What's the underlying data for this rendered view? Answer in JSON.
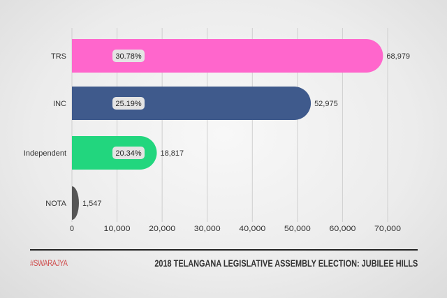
{
  "chart_data": {
    "type": "bar",
    "orientation": "horizontal",
    "title": "2018 TELANGANA LEGISLATIVE ASSEMBLY ELECTION: JUBILEE HILLS",
    "categories": [
      "TRS",
      "INC",
      "Independent",
      "NOTA"
    ],
    "values": [
      68979,
      52975,
      18817,
      1547
    ],
    "value_labels": [
      "68,979",
      "52,975",
      "18,817",
      "1,547"
    ],
    "percent_labels": [
      "30.78%",
      "25.19%",
      "20.34%",
      ""
    ],
    "colors": [
      "#ff66cc",
      "#3f5a8c",
      "#22d67e",
      "#555555"
    ],
    "xlim": [
      0,
      70000
    ],
    "xticks": [
      "0",
      "10,000",
      "20,000",
      "30,000",
      "40,000",
      "50,000",
      "60,000",
      "70,000"
    ],
    "grid": true
  },
  "footer": {
    "brand": "#SWARAJYA",
    "title": "2018 TELANGANA LEGISLATIVE ASSEMBLY ELECTION: JUBILEE HILLS"
  }
}
